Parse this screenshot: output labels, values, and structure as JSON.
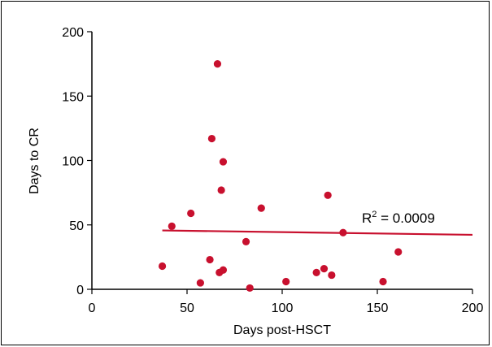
{
  "chart_data": {
    "type": "scatter",
    "xlabel": "Days post-HSCT",
    "ylabel": "Days to CR",
    "xlim": [
      0,
      200
    ],
    "ylim": [
      0,
      200
    ],
    "x_ticks": [
      0,
      50,
      100,
      150,
      200
    ],
    "y_ticks": [
      0,
      50,
      100,
      150,
      200
    ],
    "x_tick_labels": [
      "0",
      "50",
      "100",
      "150",
      "200"
    ],
    "y_tick_labels": [
      "0",
      "50",
      "100",
      "150",
      "200"
    ],
    "grid": false,
    "points": [
      {
        "x": 37,
        "y": 18
      },
      {
        "x": 42,
        "y": 49
      },
      {
        "x": 52,
        "y": 59
      },
      {
        "x": 57,
        "y": 5
      },
      {
        "x": 62,
        "y": 23
      },
      {
        "x": 63,
        "y": 117
      },
      {
        "x": 66,
        "y": 175
      },
      {
        "x": 67,
        "y": 13
      },
      {
        "x": 68,
        "y": 77
      },
      {
        "x": 69,
        "y": 99
      },
      {
        "x": 69,
        "y": 15
      },
      {
        "x": 81,
        "y": 37
      },
      {
        "x": 83,
        "y": 1
      },
      {
        "x": 89,
        "y": 63
      },
      {
        "x": 102,
        "y": 6
      },
      {
        "x": 118,
        "y": 13
      },
      {
        "x": 122,
        "y": 16
      },
      {
        "x": 124,
        "y": 73
      },
      {
        "x": 126,
        "y": 11
      },
      {
        "x": 132,
        "y": 44
      },
      {
        "x": 153,
        "y": 6
      },
      {
        "x": 161,
        "y": 29
      }
    ],
    "trendline": {
      "x": [
        37,
        200
      ],
      "y": [
        45.7,
        42.3
      ]
    },
    "annotation": {
      "prefix": "R",
      "superscript": "2",
      "text": " = 0.0009"
    },
    "colors": {
      "points": "#c8102e",
      "trendline": "#c8102e",
      "axis": "#000000"
    }
  }
}
